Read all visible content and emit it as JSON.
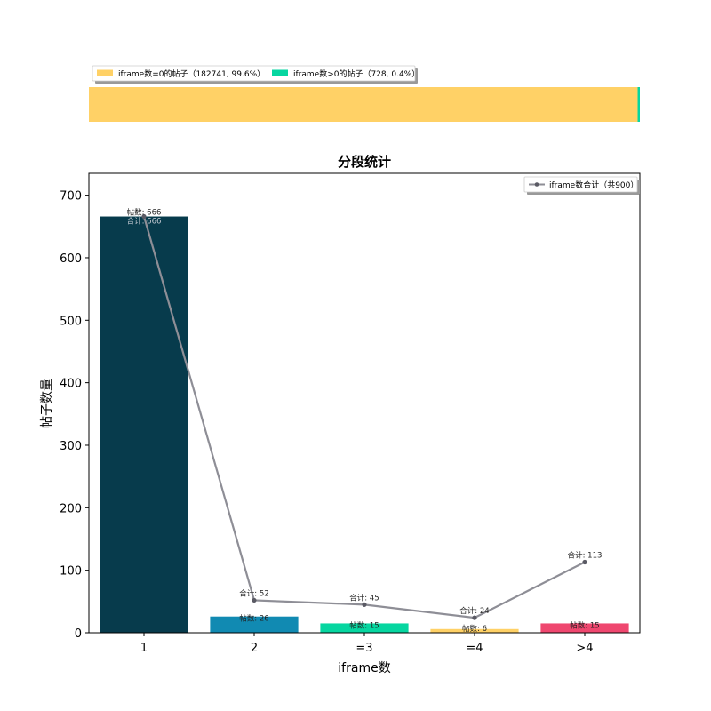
{
  "top_bar": {
    "legend": [
      {
        "label": "iframe数=0的帖子（182741, 99.6%）",
        "color": "#FFD166",
        "fraction": 0.996
      },
      {
        "label": "iframe数>0的帖子（728, 0.4%）",
        "color": "#06D6A0",
        "fraction": 0.004
      }
    ]
  },
  "chart_data": {
    "type": "bar",
    "title": "分段统计",
    "xlabel": "iframe数",
    "ylabel": "帖子数量",
    "categories": [
      "1",
      "2",
      "=3",
      "=4",
      ">4"
    ],
    "ylim": [
      0,
      735
    ],
    "yticks": [
      "0",
      "100",
      "200",
      "300",
      "400",
      "500",
      "600",
      "700"
    ],
    "bar_colors": [
      "#073B4C",
      "#118AB2",
      "#06D6A0",
      "#FFD166",
      "#EF476F"
    ],
    "line_color": "#8E8E96",
    "series": [
      {
        "values": [
          666,
          26,
          15,
          6,
          15
        ],
        "labels": [
          "帖数: 666",
          "帖数: 26",
          "帖数: 15",
          "帖数: 6",
          "帖数: 15"
        ]
      },
      {
        "name": "iframe数合计（共900）",
        "values": [
          666,
          52,
          45,
          24,
          113
        ],
        "labels": [
          "合计: 666",
          "合计: 52",
          "合计: 45",
          "合计: 24",
          "合计: 113"
        ]
      }
    ],
    "legend_position": "top-right"
  }
}
